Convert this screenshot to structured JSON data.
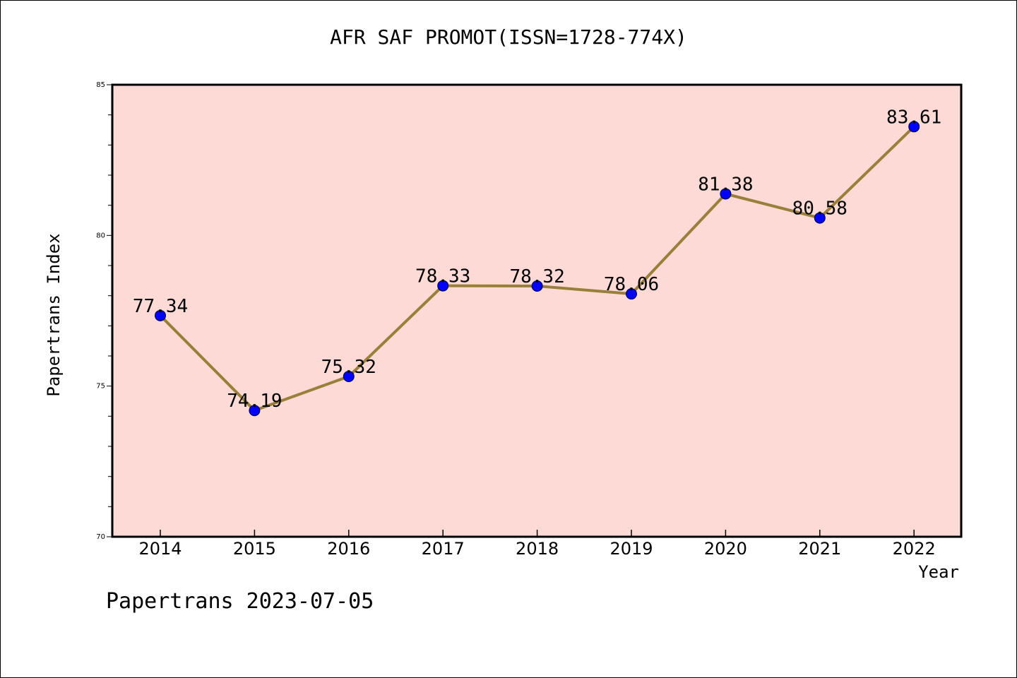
{
  "chart_data": {
    "type": "line",
    "title": "AFR SAF PROMOT(ISSN=1728-774X)",
    "xlabel": "Year",
    "ylabel": "Papertrans Index",
    "categories": [
      "2014",
      "2015",
      "2016",
      "2017",
      "2018",
      "2019",
      "2020",
      "2021",
      "2022"
    ],
    "values": [
      77.34,
      74.19,
      75.32,
      78.33,
      78.32,
      78.06,
      81.38,
      80.58,
      83.61
    ],
    "data_labels": [
      "77.34",
      "74.19",
      "75.32",
      "78.33",
      "78.32",
      "78.06",
      "81.38",
      "80.58",
      "83.61"
    ],
    "ylim": [
      70,
      85
    ],
    "yticks": [
      70,
      75,
      80,
      85
    ],
    "ytick_labels": [
      "70",
      "75",
      "80",
      "85"
    ],
    "grid": false,
    "colors": {
      "plot_background": "#fddad6",
      "line": "#9a7f3a",
      "marker": "#0000ff"
    }
  },
  "footer": "Papertrans 2023-07-05"
}
